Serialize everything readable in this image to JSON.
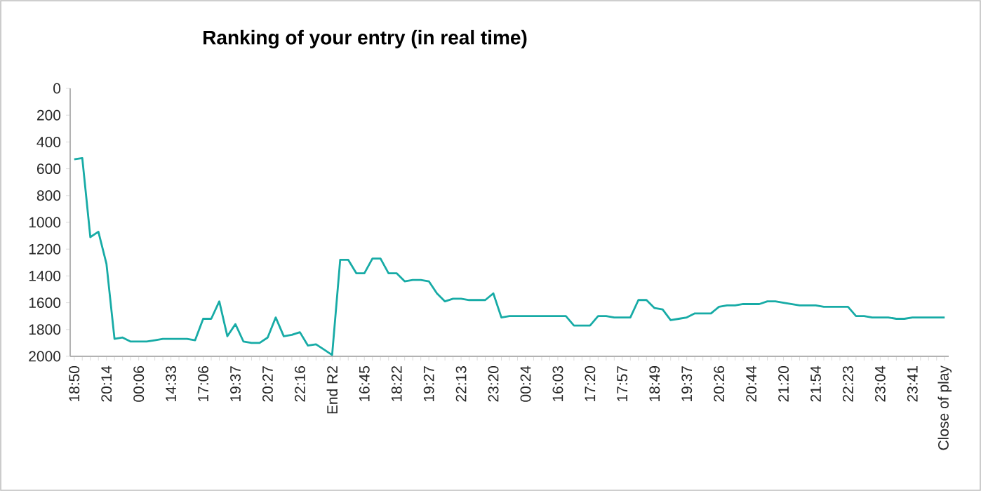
{
  "chart_data": {
    "type": "line",
    "title": "Ranking of your entry (in real time)",
    "categories": [
      "18:50",
      null,
      null,
      null,
      "20:14",
      null,
      null,
      null,
      "00:06",
      null,
      null,
      null,
      "14:33",
      null,
      null,
      null,
      "17:06",
      null,
      null,
      null,
      "19:37",
      null,
      null,
      null,
      "20:27",
      null,
      null,
      null,
      "22:16",
      null,
      null,
      null,
      "End R2",
      null,
      null,
      null,
      "16:45",
      null,
      null,
      null,
      "18:22",
      null,
      null,
      null,
      "19:27",
      null,
      null,
      null,
      "22:13",
      null,
      null,
      null,
      "23:20",
      null,
      null,
      null,
      "00:24",
      null,
      null,
      null,
      "16:03",
      null,
      null,
      null,
      "17:20",
      null,
      null,
      null,
      "17:57",
      null,
      null,
      null,
      "18:49",
      null,
      null,
      null,
      "19:37",
      null,
      null,
      null,
      "20:26",
      null,
      null,
      null,
      "20:44",
      null,
      null,
      null,
      "21:20",
      null,
      null,
      null,
      "21:54",
      null,
      null,
      null,
      "22:23",
      null,
      null,
      null,
      "23:04",
      null,
      null,
      null,
      "23:41",
      null,
      null,
      null,
      "Close of play"
    ],
    "series": [
      {
        "color": "#17aba6",
        "values": [
          530,
          520,
          1110,
          1070,
          1310,
          1870,
          1860,
          1890,
          1890,
          1890,
          1880,
          1870,
          1870,
          1870,
          1870,
          1880,
          1720,
          1720,
          1590,
          1850,
          1760,
          1890,
          1900,
          1900,
          1860,
          1710,
          1850,
          1840,
          1820,
          1920,
          1910,
          1950,
          1990,
          1280,
          1280,
          1380,
          1380,
          1270,
          1270,
          1380,
          1380,
          1440,
          1430,
          1430,
          1440,
          1530,
          1590,
          1570,
          1570,
          1580,
          1580,
          1580,
          1530,
          1710,
          1700,
          1700,
          1700,
          1700,
          1700,
          1700,
          1700,
          1700,
          1770,
          1770,
          1770,
          1700,
          1700,
          1710,
          1710,
          1710,
          1580,
          1580,
          1640,
          1650,
          1730,
          1720,
          1710,
          1680,
          1680,
          1680,
          1630,
          1620,
          1620,
          1610,
          1610,
          1610,
          1590,
          1590,
          1600,
          1610,
          1620,
          1620,
          1620,
          1630,
          1630,
          1630,
          1630,
          1700,
          1700,
          1710,
          1710,
          1710,
          1720,
          1720,
          1710,
          1710,
          1710,
          1710,
          1710
        ]
      }
    ],
    "ylim": [
      2000,
      0
    ],
    "yticks": [
      0,
      200,
      400,
      600,
      800,
      1000,
      1200,
      1400,
      1600,
      1800,
      2000
    ]
  }
}
